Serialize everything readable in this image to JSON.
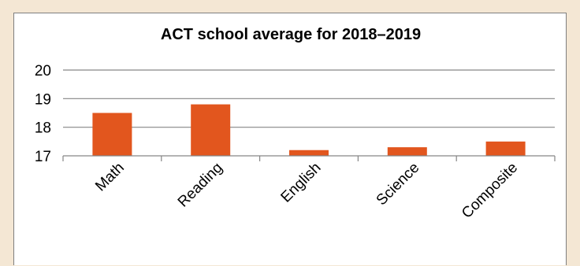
{
  "chart_data": {
    "type": "bar",
    "title": "ACT school average for 2018–2019",
    "xlabel": "",
    "ylabel": "",
    "categories": [
      "Math",
      "Reading",
      "English",
      "Science",
      "Composite"
    ],
    "values": [
      18.5,
      18.8,
      17.2,
      17.3,
      17.5
    ],
    "ylim": [
      17,
      20
    ],
    "yticks": [
      17,
      18,
      19,
      20
    ],
    "grid": true,
    "legend": "none",
    "bar_color": "#e2561e"
  }
}
